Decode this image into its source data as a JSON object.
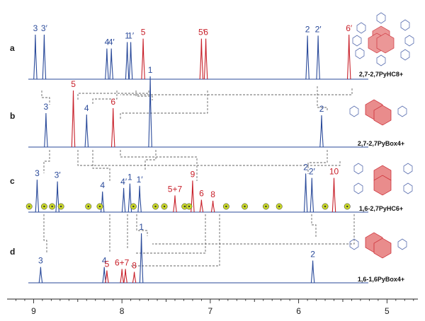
{
  "chart_data": {
    "type": "line",
    "title": "",
    "xlabel": "",
    "ylabel": "",
    "xlim": [
      9.3,
      4.65
    ],
    "x_ticks": [
      "9",
      "8",
      "7",
      "6",
      "5"
    ],
    "x_tick_values": [
      9,
      8,
      7,
      6,
      5
    ],
    "colors": {
      "blue": "#2a4a9a",
      "red": "#c8202a",
      "dashed": "#666666",
      "marker": "#c9d829"
    },
    "spectra": [
      {
        "label": "a",
        "compound": "2,7-2,7PyHC8+",
        "peaks": [
          {
            "ppm": 8.98,
            "h": 0.9,
            "color": "blue",
            "label": "3"
          },
          {
            "ppm": 8.88,
            "h": 0.9,
            "color": "blue",
            "label": "3′"
          },
          {
            "ppm": 8.17,
            "h": 0.62,
            "color": "blue",
            "label": "4"
          },
          {
            "ppm": 8.12,
            "h": 0.62,
            "color": "blue",
            "label": "4′"
          },
          {
            "ppm": 7.94,
            "h": 0.75,
            "color": "blue",
            "label": "1"
          },
          {
            "ppm": 7.9,
            "h": 0.75,
            "color": "blue",
            "label": "1′"
          },
          {
            "ppm": 7.76,
            "h": 0.82,
            "color": "red",
            "label": "5"
          },
          {
            "ppm": 7.1,
            "h": 0.82,
            "color": "red",
            "label": "5′"
          },
          {
            "ppm": 7.05,
            "h": 0.82,
            "color": "red",
            "label": "6"
          },
          {
            "ppm": 5.9,
            "h": 0.88,
            "color": "blue",
            "label": "2"
          },
          {
            "ppm": 5.78,
            "h": 0.88,
            "color": "blue",
            "label": "2′"
          },
          {
            "ppm": 5.43,
            "h": 0.9,
            "color": "red",
            "label": "6′"
          }
        ]
      },
      {
        "label": "b",
        "compound": "2,7-2,7PyBox4+",
        "peaks": [
          {
            "ppm": 8.86,
            "h": 0.48,
            "color": "blue",
            "label": "3"
          },
          {
            "ppm": 8.55,
            "h": 0.8,
            "color": "red",
            "label": "5"
          },
          {
            "ppm": 8.4,
            "h": 0.46,
            "color": "blue",
            "label": "4"
          },
          {
            "ppm": 8.1,
            "h": 0.55,
            "color": "red",
            "label": "6"
          },
          {
            "ppm": 7.68,
            "h": 1.0,
            "color": "blue",
            "label": "1"
          },
          {
            "ppm": 5.74,
            "h": 0.45,
            "color": "blue",
            "label": "2"
          }
        ]
      },
      {
        "label": "c",
        "compound": "1,6-2,7PyHC6+",
        "peaks": [
          {
            "ppm": 8.96,
            "h": 0.74,
            "color": "blue",
            "label": "3"
          },
          {
            "ppm": 8.73,
            "h": 0.7,
            "color": "blue",
            "label": "3′"
          },
          {
            "ppm": 8.22,
            "h": 0.47,
            "color": "blue",
            "label": "4"
          },
          {
            "ppm": 7.98,
            "h": 0.55,
            "color": "blue",
            "label": "4′"
          },
          {
            "ppm": 7.91,
            "h": 0.65,
            "color": "blue",
            "label": "1"
          },
          {
            "ppm": 7.8,
            "h": 0.6,
            "color": "blue",
            "label": "1′"
          },
          {
            "ppm": 7.4,
            "h": 0.38,
            "color": "red",
            "label": "5+7"
          },
          {
            "ppm": 7.2,
            "h": 0.72,
            "color": "red",
            "label": "9"
          },
          {
            "ppm": 7.1,
            "h": 0.28,
            "color": "red",
            "label": "6"
          },
          {
            "ppm": 6.97,
            "h": 0.26,
            "color": "red",
            "label": "8"
          },
          {
            "ppm": 5.92,
            "h": 0.88,
            "color": "blue",
            "label": "2"
          },
          {
            "ppm": 5.85,
            "h": 0.78,
            "color": "blue",
            "label": "2′"
          },
          {
            "ppm": 5.6,
            "h": 0.78,
            "color": "red",
            "label": "10"
          }
        ],
        "impurity_ppm": [
          9.05,
          8.88,
          8.79,
          8.69,
          8.38,
          8.25,
          7.87,
          7.62,
          7.52,
          7.29,
          7.24,
          6.82,
          6.61,
          6.37,
          6.22,
          5.7,
          5.45
        ]
      },
      {
        "label": "d",
        "compound": "1,6-1,6PyBox4+",
        "peaks": [
          {
            "ppm": 8.92,
            "h": 0.32,
            "color": "blue",
            "label": "3"
          },
          {
            "ppm": 8.2,
            "h": 0.32,
            "color": "blue",
            "label": "4"
          },
          {
            "ppm": 8.17,
            "h": 0.25,
            "color": "red",
            "label": "5"
          },
          {
            "ppm": 8.0,
            "h": 0.28,
            "color": "red",
            "label": "6+7"
          },
          {
            "ppm": 7.96,
            "h": 0.28,
            "color": "red",
            "label": ""
          },
          {
            "ppm": 7.86,
            "h": 0.22,
            "color": "red",
            "label": "8"
          },
          {
            "ppm": 7.78,
            "h": 1.0,
            "color": "blue",
            "label": "1"
          },
          {
            "ppm": 5.84,
            "h": 0.45,
            "color": "blue",
            "label": "2"
          }
        ]
      }
    ]
  }
}
